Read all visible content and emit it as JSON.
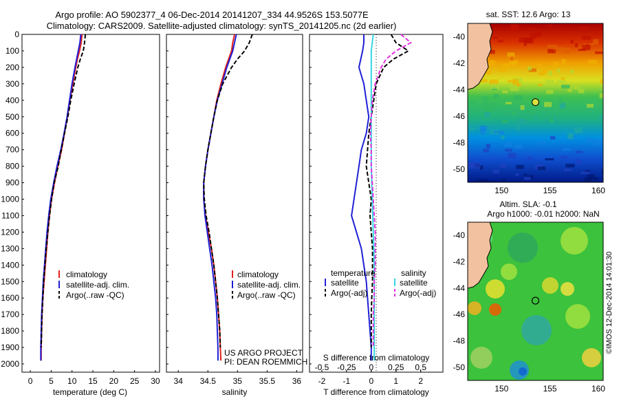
{
  "header": {
    "title_line1": "Argo profile: AO 5902377_4 06-Dec-2014 20141207_334 44.9526S 153.5077E",
    "title_line2": "Climatology: CARS2009. Satellite-adjusted climatology: synTS_20141205.nc (2d earlier)"
  },
  "depth_ticks": [
    0,
    100,
    200,
    300,
    400,
    500,
    600,
    700,
    800,
    900,
    1000,
    1100,
    1200,
    1300,
    1400,
    1500,
    1600,
    1700,
    1800,
    1900,
    2000
  ],
  "panels": {
    "temperature": {
      "xlabel": "temperature (deg C)",
      "xticks": [
        "0",
        "5",
        "10",
        "15",
        "20",
        "25",
        "30"
      ],
      "legend": [
        "climatology",
        "satellite-adj. clim.",
        "Argo(..raw -QC)"
      ]
    },
    "salinity": {
      "xlabel": "salinity",
      "xticks": [
        "34",
        "34.5",
        "35",
        "35.5",
        "36"
      ],
      "legend": [
        "climatology",
        "satellite-adj. clim.",
        "Argo(..raw -QC)"
      ],
      "credit_line1": "US ARGO PROJECT",
      "credit_line2": "PI: DEAN ROEMMICH"
    },
    "difference": {
      "xlabel": "T difference from climatology",
      "xticks": [
        "-2",
        "-1",
        "0",
        "1",
        "2"
      ],
      "s_label": "S difference from climatology",
      "s_ticks": [
        "-0.5",
        "-0.25",
        "0",
        "0.25",
        "0.5"
      ],
      "legend_temp_title": "temperature",
      "legend_sal_title": "salinity",
      "legend_temp": [
        "satellite",
        "Argo(-adj)"
      ],
      "legend_sal": [
        "satellite",
        "Argo(-adj)"
      ]
    }
  },
  "maps": {
    "sst_title": "sat. SST: 12.6 Argo: 13",
    "sla_title1": "Altim. SLA: -0.1",
    "sla_title2": "Argo h1000: -0.01 h2000: NaN",
    "lat_ticks": [
      "-40",
      "-42",
      "-44",
      "-46",
      "-48",
      "-50"
    ],
    "lon_ticks": [
      "150",
      "155",
      "160"
    ],
    "float_lon": 153.5,
    "float_lat": -44.95,
    "watermark": "©IMOS 12-Dec-2014 14:01:30"
  },
  "colors": {
    "climatology": "#e0201c",
    "satellite": "#1f1fd6",
    "argo": "#000000",
    "satellite_s": "#33d6e0",
    "argo_s": "#e030e0",
    "land": "#f2c2a0"
  },
  "chart_data": [
    {
      "type": "line",
      "title": "",
      "xlabel": "temperature (deg C)",
      "ylabel": "",
      "xlim": [
        -2,
        31
      ],
      "ylim": [
        2050,
        0
      ],
      "series": [
        {
          "name": "climatology",
          "depth": [
            0,
            50,
            100,
            150,
            200,
            300,
            400,
            500,
            600,
            700,
            800,
            900,
            1000,
            1100,
            1200,
            1300,
            1400,
            1500,
            1600,
            1700,
            1800,
            1900,
            1980
          ],
          "values": [
            12.4,
            12.2,
            11.8,
            11.3,
            10.9,
            10.2,
            9.5,
            8.9,
            8.2,
            7.5,
            6.6,
            5.8,
            5.1,
            4.6,
            4.2,
            3.9,
            3.6,
            3.3,
            3.0,
            2.8,
            2.7,
            2.6,
            2.6
          ]
        },
        {
          "name": "satellite-adj. clim.",
          "depth": [
            0,
            50,
            100,
            150,
            200,
            300,
            400,
            500,
            600,
            700,
            800,
            900,
            1000,
            1100,
            1200,
            1300,
            1400,
            1500,
            1600,
            1700,
            1800,
            1900,
            1980
          ],
          "values": [
            12.1,
            11.9,
            11.5,
            11.1,
            10.7,
            10.0,
            9.4,
            8.8,
            8.1,
            7.3,
            6.4,
            5.6,
            4.9,
            4.4,
            4.0,
            3.7,
            3.4,
            3.1,
            2.9,
            2.7,
            2.6,
            2.5,
            2.5
          ]
        },
        {
          "name": "Argo(..raw -QC)",
          "depth": [
            0,
            50,
            100,
            150,
            200,
            300,
            400,
            500,
            600,
            700,
            800,
            900,
            1000,
            1100,
            1200,
            1300,
            1400,
            1500,
            1600,
            1700,
            1800,
            1900
          ],
          "values": [
            13.2,
            13.0,
            12.7,
            12.0,
            11.4,
            10.5,
            9.7,
            9.0,
            8.2,
            7.4,
            6.7,
            5.7,
            5.1,
            4.6,
            4.2,
            3.8,
            3.5,
            3.2,
            3.0,
            2.8,
            2.7,
            2.6
          ]
        }
      ]
    },
    {
      "type": "line",
      "title": "",
      "xlabel": "salinity",
      "ylabel": "",
      "xlim": [
        33.8,
        36.1
      ],
      "ylim": [
        2050,
        0
      ],
      "series": [
        {
          "name": "climatology",
          "depth": [
            0,
            50,
            100,
            150,
            200,
            300,
            400,
            500,
            600,
            700,
            800,
            900,
            1000,
            1100,
            1200,
            1300,
            1400,
            1500,
            1600,
            1700,
            1800,
            1900,
            1980
          ],
          "values": [
            34.95,
            34.92,
            34.9,
            34.85,
            34.8,
            34.72,
            34.65,
            34.6,
            34.55,
            34.5,
            34.46,
            34.43,
            34.43,
            34.46,
            34.51,
            34.56,
            34.6,
            34.63,
            34.66,
            34.68,
            34.7,
            34.71,
            34.72
          ]
        },
        {
          "name": "satellite-adj. clim.",
          "depth": [
            0,
            50,
            100,
            150,
            200,
            300,
            400,
            500,
            600,
            700,
            800,
            900,
            1000,
            1100,
            1200,
            1300,
            1400,
            1500,
            1600,
            1700,
            1800,
            1900,
            1980
          ],
          "values": [
            34.98,
            34.95,
            34.92,
            34.87,
            34.82,
            34.74,
            34.66,
            34.6,
            34.55,
            34.5,
            34.46,
            34.43,
            34.43,
            34.45,
            34.49,
            34.53,
            34.57,
            34.6,
            34.63,
            34.65,
            34.66,
            34.67,
            34.67
          ]
        },
        {
          "name": "Argo(..raw -QC)",
          "depth": [
            0,
            50,
            100,
            150,
            200,
            300,
            400,
            500,
            600,
            700,
            800,
            900,
            1000,
            1100,
            1200,
            1300,
            1400,
            1500,
            1600,
            1700,
            1800,
            1900
          ],
          "values": [
            35.25,
            35.2,
            35.12,
            35.0,
            34.9,
            34.75,
            34.66,
            34.6,
            34.55,
            34.5,
            34.46,
            34.43,
            34.44,
            34.47,
            34.52,
            34.56,
            34.6,
            34.63,
            34.66,
            34.68,
            34.7,
            34.71
          ]
        }
      ]
    },
    {
      "type": "line",
      "title": "",
      "xlabel": "T difference from climatology",
      "ylabel": "",
      "xlim": [
        -2.5,
        2.9
      ],
      "ylim": [
        2050,
        0
      ],
      "series": [
        {
          "name": "satellite",
          "depth": [
            0,
            50,
            100,
            200,
            300,
            400,
            500,
            600,
            700,
            800,
            900,
            1000,
            1100,
            1200,
            1300,
            1400,
            1500,
            1600,
            1700,
            1800,
            1900,
            1980
          ],
          "values": [
            -0.3,
            -0.3,
            -0.35,
            -0.5,
            -0.3,
            -0.2,
            -0.1,
            -0.2,
            -0.4,
            -0.5,
            -0.6,
            -0.7,
            -0.8,
            -0.6,
            -0.4,
            -0.3,
            -0.2,
            -0.15,
            -0.1,
            -0.05,
            0.0,
            0.0
          ]
        },
        {
          "name": "Argo(-adj)",
          "depth": [
            0,
            50,
            100,
            150,
            200,
            300,
            400,
            500,
            600,
            700,
            800,
            900,
            1000,
            1100,
            1200,
            1300,
            1400,
            1500,
            1600,
            1700,
            1800,
            1900
          ],
          "values": [
            0.8,
            1.0,
            1.5,
            0.9,
            0.5,
            0.2,
            0.1,
            0.0,
            -0.1,
            -0.15,
            -0.2,
            -0.1,
            0.0,
            -0.05,
            0.0,
            0.05,
            0.05,
            0.05,
            0.02,
            0.0,
            0.0,
            0.0
          ]
        }
      ]
    },
    {
      "type": "line",
      "title": "",
      "xlabel": "S difference from climatology",
      "ylabel": "",
      "xlim": [
        -0.625,
        0.725
      ],
      "ylim": [
        2050,
        0
      ],
      "series": [
        {
          "name": "satellite",
          "depth": [
            0,
            50,
            100,
            200,
            300,
            400,
            500,
            600,
            800,
            1000,
            1200,
            1400,
            1600,
            1800,
            1980
          ],
          "values": [
            0.02,
            0.01,
            0.0,
            0.0,
            0.0,
            0.0,
            0.0,
            0.0,
            0.0,
            0.01,
            0.02,
            0.03,
            0.03,
            0.03,
            0.03
          ]
        },
        {
          "name": "Argo(-adj)",
          "depth": [
            0,
            50,
            100,
            150,
            200,
            300,
            400,
            500,
            600,
            700,
            800,
            900,
            1000,
            1100,
            1200,
            1300,
            1400,
            1500,
            1600,
            1700,
            1800,
            1900
          ],
          "values": [
            0.3,
            0.4,
            0.25,
            0.15,
            0.1,
            0.04,
            0.01,
            0.0,
            -0.01,
            0.0,
            0.0,
            0.01,
            0.02,
            0.03,
            0.04,
            0.04,
            0.04,
            0.03,
            0.03,
            0.02,
            0.02,
            0.02
          ]
        }
      ]
    }
  ]
}
